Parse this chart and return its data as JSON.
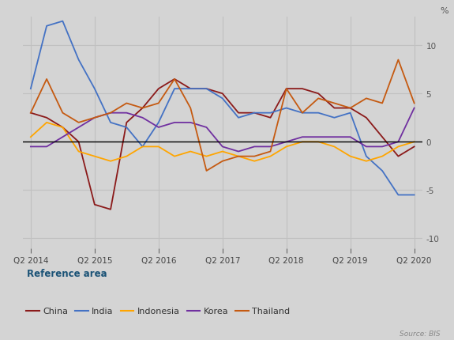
{
  "ylabel": "%",
  "source": "Source: BIS",
  "reference_area_label": "Reference area",
  "background_color": "#d4d4d4",
  "zero_line_color": "#000000",
  "grid_color": "#c0c0c0",
  "x_labels": [
    "Q2 2014",
    "Q2 2015",
    "Q2 2016",
    "Q2 2017",
    "Q2 2018",
    "Q2 2019",
    "Q2 2020"
  ],
  "x_tick_positions": [
    0,
    4,
    8,
    12,
    16,
    20,
    24
  ],
  "series": {
    "China": {
      "color": "#8b1a1a",
      "data": [
        3.0,
        2.5,
        1.5,
        0.0,
        -6.5,
        -7.0,
        2.0,
        3.5,
        5.5,
        6.5,
        5.5,
        5.5,
        5.0,
        3.0,
        3.0,
        2.5,
        5.5,
        5.5,
        5.0,
        3.5,
        3.5,
        2.5,
        0.5,
        -1.5,
        -0.5
      ]
    },
    "India": {
      "color": "#4472c4",
      "data": [
        5.5,
        12.0,
        12.5,
        8.5,
        5.5,
        2.0,
        1.5,
        -0.5,
        2.0,
        5.5,
        5.5,
        5.5,
        4.5,
        2.5,
        3.0,
        3.0,
        3.5,
        3.0,
        3.0,
        2.5,
        3.0,
        -1.5,
        -3.0,
        -5.5,
        -5.5
      ]
    },
    "Indonesia": {
      "color": "#ffa500",
      "data": [
        0.5,
        2.0,
        1.5,
        -1.0,
        -1.5,
        -2.0,
        -1.5,
        -0.5,
        -0.5,
        -1.5,
        -1.0,
        -1.5,
        -1.0,
        -1.5,
        -2.0,
        -1.5,
        -0.5,
        0.0,
        0.0,
        -0.5,
        -1.5,
        -2.0,
        -1.5,
        -0.5,
        0.0
      ]
    },
    "Korea": {
      "color": "#7030a0",
      "data": [
        -0.5,
        -0.5,
        0.5,
        1.5,
        2.5,
        3.0,
        3.0,
        2.5,
        1.5,
        2.0,
        2.0,
        1.5,
        -0.5,
        -1.0,
        -0.5,
        -0.5,
        0.0,
        0.5,
        0.5,
        0.5,
        0.5,
        -0.5,
        -0.5,
        0.0,
        3.5
      ]
    },
    "Thailand": {
      "color": "#c55a11",
      "data": [
        3.0,
        6.5,
        3.0,
        2.0,
        2.5,
        3.0,
        4.0,
        3.5,
        4.0,
        6.5,
        3.5,
        -3.0,
        -2.0,
        -1.5,
        -1.5,
        -1.0,
        5.5,
        3.0,
        4.5,
        4.0,
        3.5,
        4.5,
        4.0,
        8.5,
        4.0
      ]
    }
  },
  "ylim": [
    -11,
    13
  ],
  "yticks": [
    -10,
    -5,
    0,
    5,
    10
  ],
  "n_points": 25
}
